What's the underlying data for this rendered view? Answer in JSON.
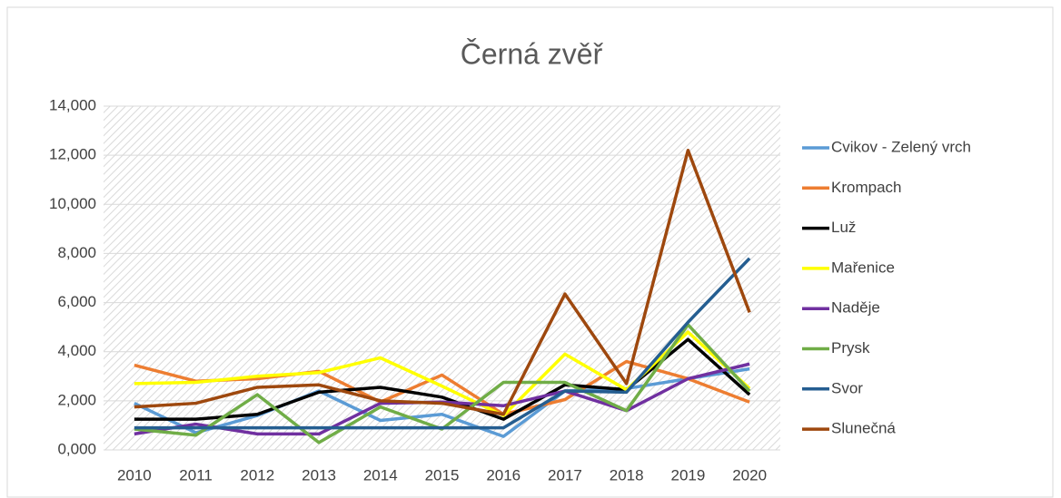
{
  "chart_data": {
    "type": "line",
    "title": "Černá zvěř",
    "categories": [
      "2010",
      "2011",
      "2012",
      "2013",
      "2014",
      "2015",
      "2016",
      "2017",
      "2018",
      "2019",
      "2020"
    ],
    "series": [
      {
        "name": "Cvikov - Zelený vrch",
        "color": "#5b9bd5",
        "values": [
          1900,
          700,
          1400,
          2400,
          1200,
          1450,
          550,
          2400,
          2500,
          2900,
          3300
        ]
      },
      {
        "name": "Krompach",
        "color": "#ed7d31",
        "values": [
          3450,
          2800,
          2900,
          3200,
          1950,
          3050,
          1450,
          2050,
          3600,
          2900,
          1950
        ]
      },
      {
        "name": "Luž",
        "color": "#000000",
        "values": [
          1250,
          1250,
          1450,
          2350,
          2550,
          2150,
          1250,
          2650,
          2450,
          4500,
          2250
        ]
      },
      {
        "name": "Mařenice",
        "color": "#ffff00",
        "values": [
          2700,
          2750,
          3000,
          3150,
          3750,
          2600,
          1400,
          3900,
          2450,
          4800,
          2500
        ]
      },
      {
        "name": "Naděje",
        "color": "#7030a0",
        "values": [
          650,
          1050,
          650,
          650,
          1900,
          1950,
          1800,
          2400,
          1600,
          2900,
          3500
        ]
      },
      {
        "name": "Prysk",
        "color": "#70ad47",
        "values": [
          850,
          600,
          2250,
          300,
          1750,
          850,
          2750,
          2750,
          1600,
          5100,
          2400
        ]
      },
      {
        "name": "Svor",
        "color": "#255e91",
        "values": [
          900,
          900,
          900,
          900,
          900,
          900,
          900,
          2400,
          2350,
          5200,
          7800
        ]
      },
      {
        "name": "Slunečná",
        "color": "#9e480e",
        "values": [
          1750,
          1900,
          2550,
          2650,
          2000,
          1900,
          1450,
          6350,
          2700,
          12200,
          5600
        ]
      }
    ],
    "ylim": [
      0,
      14000
    ],
    "yticks": [
      {
        "value": 0,
        "label": "0,000"
      },
      {
        "value": 2000,
        "label": "2,000"
      },
      {
        "value": 4000,
        "label": "4,000"
      },
      {
        "value": 6000,
        "label": "6,000"
      },
      {
        "value": 8000,
        "label": "8,000"
      },
      {
        "value": 10000,
        "label": "10,000"
      },
      {
        "value": 12000,
        "label": "12,000"
      },
      {
        "value": 14000,
        "label": "14,000"
      }
    ],
    "grid": true,
    "legend": "right"
  }
}
